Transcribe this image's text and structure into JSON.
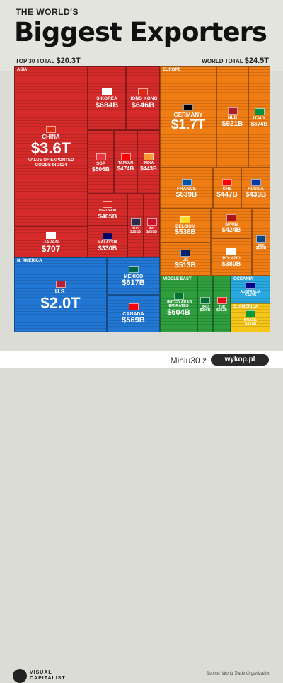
{
  "header": {
    "pre_title": "THE WORLD'S",
    "title": "Biggest Exporters",
    "top30_label": "TOP 30 TOTAL",
    "top30_value": "$20.3T",
    "world_label": "WORLD TOTAL",
    "world_value": "$24.5T"
  },
  "footer": {
    "brand_line1": "VISUAL",
    "brand_line2": "CAPITALIST",
    "source": "Source: World Trade Organization"
  },
  "watermark": {
    "text": "Miniu30  z",
    "logo_text": "wykop.pl"
  },
  "chart_data": {
    "type": "treemap",
    "title": "Biggest Exporters",
    "annotation": "VALUE OF EXPORTED GOODS IN 2024",
    "regions": [
      {
        "name": "ASIA",
        "color": "#d42a2a",
        "countries": [
          {
            "name": "CHINA",
            "value": "$3.6T",
            "flag": "#de2910",
            "annot": true
          },
          {
            "name": "S.KOREA",
            "value": "$684B",
            "flag": "#ffffff"
          },
          {
            "name": "HONG KONG",
            "value": "$646B",
            "flag": "#de2910"
          },
          {
            "name": "SGP",
            "value": "$506B",
            "flag": "#ef3340"
          },
          {
            "name": "TAIWAN",
            "value": "$474B",
            "flag": "#fe0000"
          },
          {
            "name": "INDIA",
            "value": "$443B",
            "flag": "#ff9933"
          },
          {
            "name": "JAPAN",
            "value": "$707",
            "flag": "#ffffff"
          },
          {
            "name": "VIETNAM",
            "value": "$405B",
            "flag": "#da251d"
          },
          {
            "name": "MALAYSIA",
            "value": "$330B",
            "flag": "#010066"
          },
          {
            "name": "THA",
            "value": "$301B",
            "flag": "#2d2a4a"
          },
          {
            "name": "IDN",
            "value": "$265B",
            "flag": "#ce1126"
          }
        ]
      },
      {
        "name": "EUROPE",
        "color": "#f07d14",
        "countries": [
          {
            "name": "GERMANY",
            "value": "$1.7T",
            "flag": "#000000"
          },
          {
            "name": "NLD",
            "value": "$921B",
            "flag": "#ae1c28"
          },
          {
            "name": "ITALY",
            "value": "$674B",
            "flag": "#009246"
          },
          {
            "name": "FRANCE",
            "value": "$639B",
            "flag": "#0055a4"
          },
          {
            "name": "CHE",
            "value": "$447B",
            "flag": "#ff0000"
          },
          {
            "name": "RUSSIA",
            "value": "$433B",
            "flag": "#0039a6"
          },
          {
            "name": "BELGIUM",
            "value": "$536B",
            "flag": "#fdda24"
          },
          {
            "name": "SPAIN",
            "value": "$424B",
            "flag": "#aa151b"
          },
          {
            "name": "UK",
            "value": "$513B",
            "flag": "#012169"
          },
          {
            "name": "POLAND",
            "value": "$380B",
            "flag": "#ffffff"
          },
          {
            "name": "CZE",
            "value": "$283B",
            "flag": "#11457e"
          }
        ]
      },
      {
        "name": "N. AMERICA",
        "color": "#2277d4",
        "countries": [
          {
            "name": "U.S.",
            "value": "$2.0T",
            "flag": "#b22234"
          },
          {
            "name": "MEXICO",
            "value": "$617B",
            "flag": "#006847"
          },
          {
            "name": "CANADA",
            "value": "$569B",
            "flag": "#ff0000"
          }
        ]
      },
      {
        "name": "MIDDLE EAST",
        "color": "#2e9e3e",
        "countries": [
          {
            "name": "UNITED ARAB EMIRATES",
            "value": "$604B",
            "flag": "#00732f"
          },
          {
            "name": "SAU",
            "value": "$306B",
            "flag": "#006c35"
          },
          {
            "name": "TUR",
            "value": "$262B",
            "flag": "#e30a17"
          }
        ]
      },
      {
        "name": "OCEANIA",
        "color": "#29a8e0",
        "countries": [
          {
            "name": "AUSTRALIA",
            "value": "$343B",
            "flag": "#00008b"
          }
        ]
      },
      {
        "name": "S. AMERICA",
        "color": "#f5c518",
        "countries": [
          {
            "name": "BRAZIL",
            "value": "$337B",
            "flag": "#009c3b"
          }
        ]
      }
    ]
  }
}
